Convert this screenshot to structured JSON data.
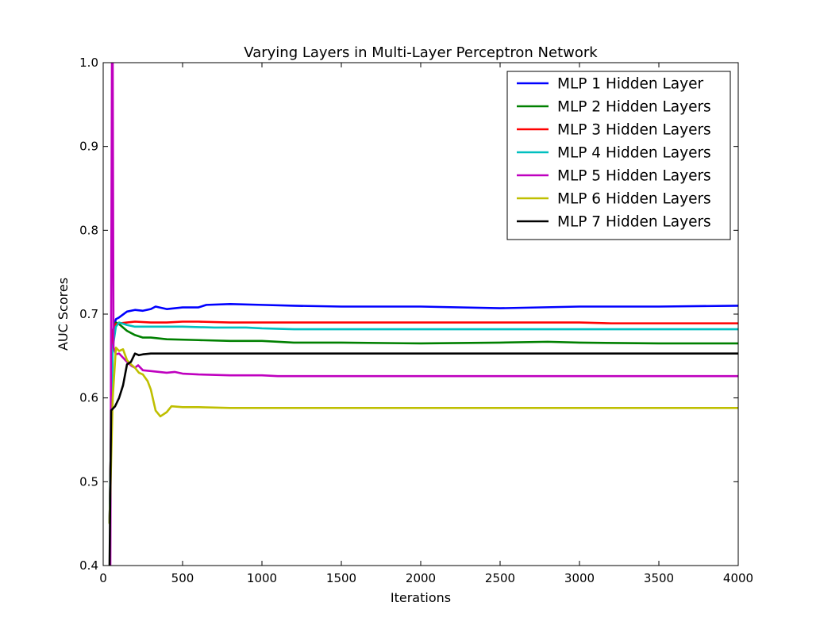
{
  "chart_data": {
    "type": "line",
    "title": "Varying Layers in Multi-Layer Perceptron Network",
    "xlabel": "Iterations",
    "ylabel": "AUC Scores",
    "xlim": [
      0,
      4000
    ],
    "ylim": [
      0.4,
      1.0
    ],
    "x_ticks": [
      "0",
      "500",
      "1000",
      "1500",
      "2000",
      "2500",
      "3000",
      "3500",
      "4000"
    ],
    "y_ticks": [
      "0.4",
      "0.5",
      "0.6",
      "0.7",
      "0.8",
      "0.9",
      "1.0"
    ],
    "grid": false,
    "legend_position": "top-right",
    "series": [
      {
        "name": "MLP 1 Hidden Layer",
        "color": "#0000ff",
        "points": [
          [
            40,
            0.45
          ],
          [
            60,
            0.68
          ],
          [
            80,
            0.694
          ],
          [
            100,
            0.696
          ],
          [
            150,
            0.703
          ],
          [
            200,
            0.705
          ],
          [
            250,
            0.704
          ],
          [
            300,
            0.706
          ],
          [
            330,
            0.709
          ],
          [
            400,
            0.706
          ],
          [
            500,
            0.708
          ],
          [
            600,
            0.708
          ],
          [
            650,
            0.711
          ],
          [
            800,
            0.712
          ],
          [
            1000,
            0.711
          ],
          [
            1200,
            0.71
          ],
          [
            1500,
            0.709
          ],
          [
            2000,
            0.709
          ],
          [
            2500,
            0.707
          ],
          [
            3000,
            0.709
          ],
          [
            3500,
            0.709
          ],
          [
            4000,
            0.71
          ]
        ]
      },
      {
        "name": "MLP 2 Hidden Layers",
        "color": "#008000",
        "points": [
          [
            40,
            0.45
          ],
          [
            60,
            0.68
          ],
          [
            80,
            0.69
          ],
          [
            100,
            0.688
          ],
          [
            150,
            0.68
          ],
          [
            200,
            0.675
          ],
          [
            250,
            0.672
          ],
          [
            300,
            0.672
          ],
          [
            400,
            0.67
          ],
          [
            600,
            0.669
          ],
          [
            800,
            0.668
          ],
          [
            1000,
            0.668
          ],
          [
            1200,
            0.666
          ],
          [
            1500,
            0.666
          ],
          [
            2000,
            0.665
          ],
          [
            2500,
            0.666
          ],
          [
            2800,
            0.667
          ],
          [
            3000,
            0.666
          ],
          [
            3500,
            0.665
          ],
          [
            4000,
            0.665
          ]
        ]
      },
      {
        "name": "MLP 3 Hidden Layers",
        "color": "#ff0000",
        "points": [
          [
            40,
            0.45
          ],
          [
            60,
            0.68
          ],
          [
            80,
            0.688
          ],
          [
            100,
            0.689
          ],
          [
            150,
            0.69
          ],
          [
            200,
            0.691
          ],
          [
            300,
            0.69
          ],
          [
            400,
            0.69
          ],
          [
            500,
            0.691
          ],
          [
            600,
            0.691
          ],
          [
            800,
            0.69
          ],
          [
            1000,
            0.69
          ],
          [
            1500,
            0.69
          ],
          [
            2000,
            0.69
          ],
          [
            2500,
            0.69
          ],
          [
            3000,
            0.69
          ],
          [
            3200,
            0.689
          ],
          [
            3500,
            0.689
          ],
          [
            4000,
            0.689
          ]
        ]
      },
      {
        "name": "MLP 4 Hidden Layers",
        "color": "#00bfbf",
        "points": [
          [
            40,
            0.45
          ],
          [
            60,
            0.66
          ],
          [
            80,
            0.685
          ],
          [
            100,
            0.69
          ],
          [
            150,
            0.687
          ],
          [
            200,
            0.685
          ],
          [
            300,
            0.685
          ],
          [
            400,
            0.685
          ],
          [
            500,
            0.685
          ],
          [
            700,
            0.684
          ],
          [
            900,
            0.684
          ],
          [
            1000,
            0.683
          ],
          [
            1200,
            0.682
          ],
          [
            1500,
            0.682
          ],
          [
            2000,
            0.682
          ],
          [
            2500,
            0.682
          ],
          [
            3000,
            0.682
          ],
          [
            3500,
            0.682
          ],
          [
            4000,
            0.682
          ]
        ]
      },
      {
        "name": "MLP 5 Hidden Layers",
        "color": "#bf00bf",
        "points": [
          [
            45,
            0.4
          ],
          [
            55,
            1.0
          ],
          [
            60,
            1.0
          ],
          [
            65,
            0.66
          ],
          [
            80,
            0.652
          ],
          [
            100,
            0.653
          ],
          [
            150,
            0.643
          ],
          [
            180,
            0.638
          ],
          [
            200,
            0.636
          ],
          [
            220,
            0.639
          ],
          [
            250,
            0.633
          ],
          [
            300,
            0.632
          ],
          [
            400,
            0.63
          ],
          [
            450,
            0.631
          ],
          [
            500,
            0.629
          ],
          [
            600,
            0.628
          ],
          [
            800,
            0.627
          ],
          [
            1000,
            0.627
          ],
          [
            1100,
            0.626
          ],
          [
            1500,
            0.626
          ],
          [
            2000,
            0.626
          ],
          [
            3000,
            0.626
          ],
          [
            4000,
            0.626
          ]
        ]
      },
      {
        "name": "MLP 6 Hidden Layers",
        "color": "#bfbf00",
        "points": [
          [
            40,
            0.45
          ],
          [
            60,
            0.6
          ],
          [
            80,
            0.66
          ],
          [
            100,
            0.656
          ],
          [
            125,
            0.658
          ],
          [
            150,
            0.645
          ],
          [
            175,
            0.64
          ],
          [
            200,
            0.636
          ],
          [
            225,
            0.63
          ],
          [
            250,
            0.628
          ],
          [
            280,
            0.62
          ],
          [
            300,
            0.61
          ],
          [
            330,
            0.585
          ],
          [
            360,
            0.578
          ],
          [
            400,
            0.583
          ],
          [
            430,
            0.59
          ],
          [
            500,
            0.589
          ],
          [
            600,
            0.589
          ],
          [
            800,
            0.588
          ],
          [
            1000,
            0.588
          ],
          [
            1100,
            0.588
          ],
          [
            1500,
            0.588
          ],
          [
            2000,
            0.588
          ],
          [
            3000,
            0.588
          ],
          [
            4000,
            0.588
          ]
        ]
      },
      {
        "name": "MLP 7 Hidden Layers",
        "color": "#000000",
        "points": [
          [
            40,
            0.4
          ],
          [
            50,
            0.585
          ],
          [
            75,
            0.59
          ],
          [
            100,
            0.6
          ],
          [
            125,
            0.615
          ],
          [
            150,
            0.64
          ],
          [
            175,
            0.643
          ],
          [
            200,
            0.653
          ],
          [
            225,
            0.651
          ],
          [
            250,
            0.652
          ],
          [
            300,
            0.653
          ],
          [
            400,
            0.653
          ],
          [
            600,
            0.653
          ],
          [
            1000,
            0.653
          ],
          [
            2000,
            0.653
          ],
          [
            3000,
            0.653
          ],
          [
            4000,
            0.653
          ]
        ]
      }
    ]
  }
}
